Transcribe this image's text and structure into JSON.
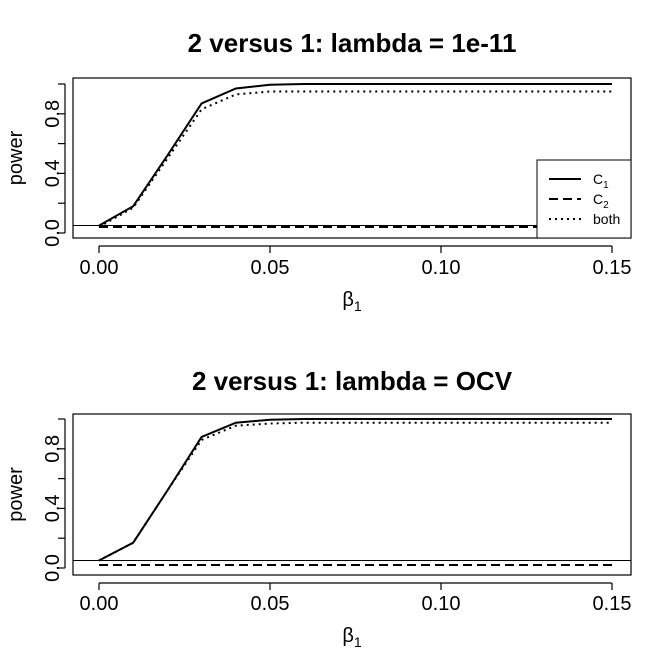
{
  "chart_data": [
    {
      "type": "line",
      "title": "2 versus 1: lambda = 1e-11",
      "xlabel": "β",
      "xlabel_sub": "1",
      "ylabel": "power",
      "x": [
        0.0,
        0.01,
        0.02,
        0.03,
        0.04,
        0.05,
        0.06,
        0.07,
        0.08,
        0.09,
        0.1,
        0.11,
        0.12,
        0.13,
        0.14,
        0.15
      ],
      "xlim": [
        0,
        0.15
      ],
      "ylim": [
        0,
        1
      ],
      "xticks": [
        "0.00",
        "0.05",
        "0.10",
        "0.15"
      ],
      "yticks": [
        "0.0",
        "0.4",
        "0.8"
      ],
      "hline": 0.05,
      "legend_position": "bottom-right",
      "series": [
        {
          "name": "C",
          "name_sub": "1",
          "linestyle": "solid",
          "values": [
            0.05,
            0.18,
            0.52,
            0.87,
            0.97,
            0.995,
            1,
            1,
            1,
            1,
            1,
            1,
            1,
            1,
            1,
            1
          ]
        },
        {
          "name": "C",
          "name_sub": "2",
          "linestyle": "dashed",
          "values": [
            0.04,
            0.04,
            0.04,
            0.04,
            0.04,
            0.04,
            0.04,
            0.04,
            0.04,
            0.04,
            0.04,
            0.04,
            0.04,
            0.04,
            0.04,
            0.04
          ]
        },
        {
          "name": "both",
          "name_sub": "",
          "linestyle": "dotted",
          "values": [
            0.04,
            0.17,
            0.5,
            0.83,
            0.93,
            0.95,
            0.95,
            0.95,
            0.95,
            0.95,
            0.95,
            0.95,
            0.95,
            0.95,
            0.95,
            0.95
          ]
        }
      ]
    },
    {
      "type": "line",
      "title": "2 versus 1: lambda = OCV",
      "xlabel": "β",
      "xlabel_sub": "1",
      "ylabel": "power",
      "x": [
        0.0,
        0.01,
        0.02,
        0.03,
        0.04,
        0.05,
        0.06,
        0.07,
        0.08,
        0.09,
        0.1,
        0.11,
        0.12,
        0.13,
        0.14,
        0.15
      ],
      "xlim": [
        0,
        0.15
      ],
      "ylim": [
        0,
        1
      ],
      "xticks": [
        "0.00",
        "0.05",
        "0.10",
        "0.15"
      ],
      "yticks": [
        "0.0",
        "0.4",
        "0.8"
      ],
      "hline": 0.05,
      "series": [
        {
          "name": "C",
          "name_sub": "1",
          "linestyle": "solid",
          "values": [
            0.05,
            0.17,
            0.52,
            0.88,
            0.975,
            0.995,
            1,
            1,
            1,
            1,
            1,
            1,
            1,
            1,
            1,
            1
          ]
        },
        {
          "name": "C",
          "name_sub": "2",
          "linestyle": "dashed",
          "values": [
            0.02,
            0.02,
            0.02,
            0.02,
            0.02,
            0.02,
            0.02,
            0.02,
            0.02,
            0.02,
            0.02,
            0.02,
            0.02,
            0.02,
            0.02,
            0.02
          ]
        },
        {
          "name": "both",
          "name_sub": "",
          "linestyle": "dotted",
          "values": [
            0.05,
            0.17,
            0.52,
            0.86,
            0.955,
            0.97,
            0.975,
            0.975,
            0.975,
            0.975,
            0.975,
            0.975,
            0.975,
            0.975,
            0.975,
            0.975
          ]
        }
      ]
    }
  ]
}
